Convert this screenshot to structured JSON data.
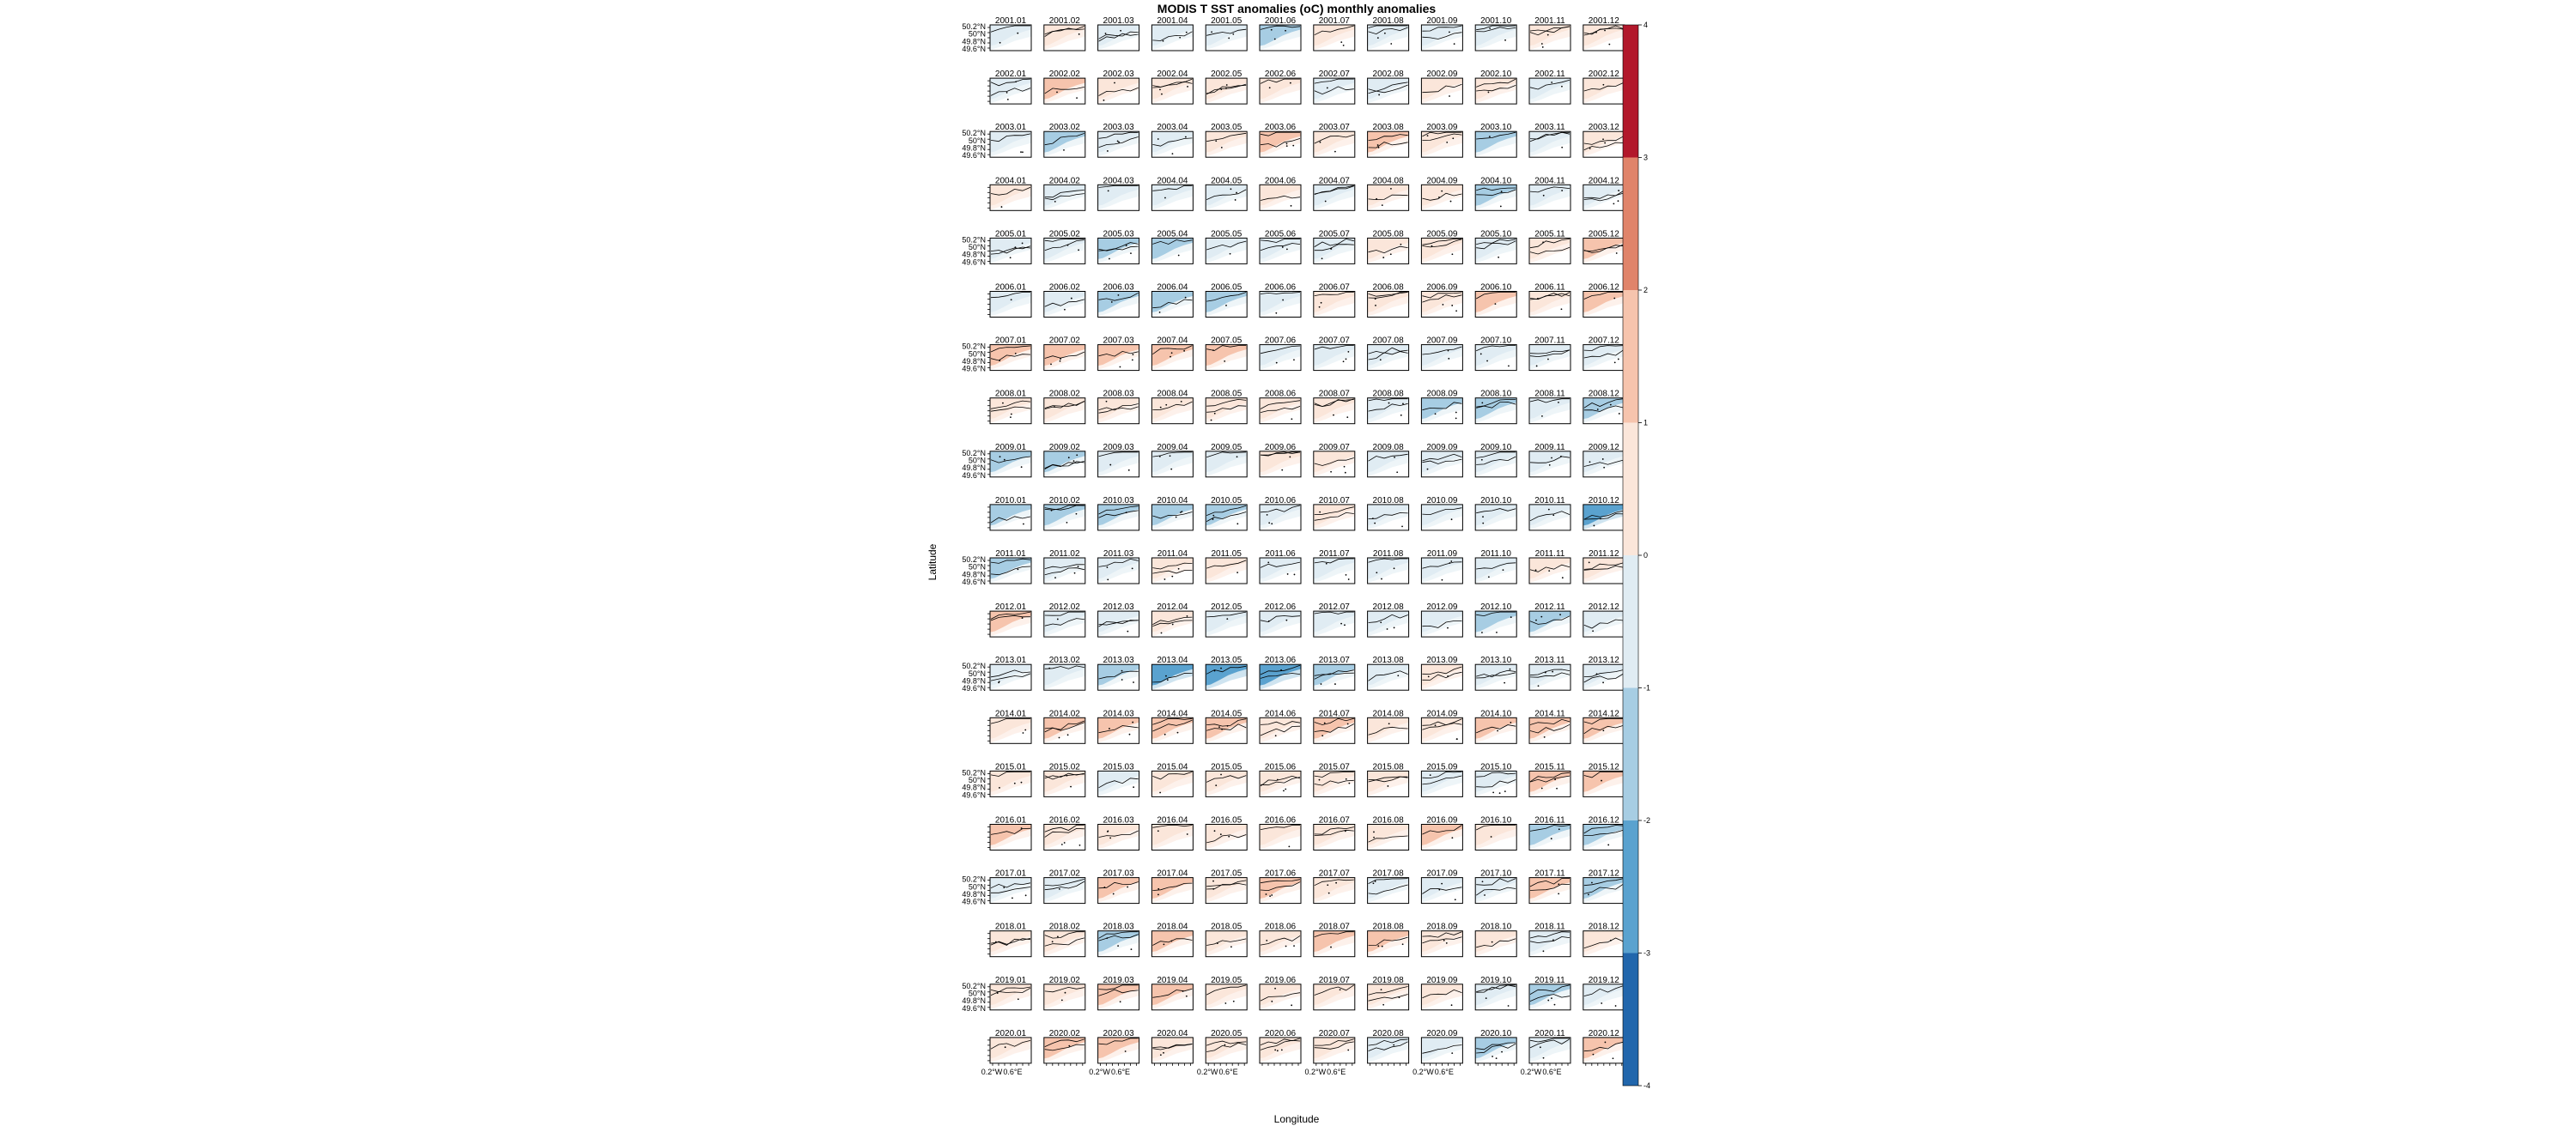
{
  "chart_data": {
    "type": "heatmap",
    "title": "MODIS T SST anomalies (oC) monthly anomalies",
    "xlabel": "Longitude",
    "ylabel": "Latitude",
    "years": [
      "2001",
      "2002",
      "2003",
      "2004",
      "2005",
      "2006",
      "2007",
      "2008",
      "2009",
      "2010",
      "2011",
      "2012",
      "2013",
      "2014",
      "2015",
      "2016",
      "2017",
      "2018",
      "2019",
      "2020"
    ],
    "months": [
      "01",
      "02",
      "03",
      "04",
      "05",
      "06",
      "07",
      "08",
      "09",
      "10",
      "11",
      "12"
    ],
    "y_tick_labels": [
      "50.2°N",
      "50°N",
      "49.8°N",
      "49.6°N"
    ],
    "x_tick_labels": [
      "0.2°W",
      "0.6°E"
    ],
    "colorbar": {
      "ticks": [
        "4",
        "3",
        "2",
        "1",
        "0",
        "-1",
        "-2",
        "-3",
        "-4"
      ],
      "range": [
        -4,
        4
      ],
      "bins": [
        {
          "from": 3,
          "to": 4,
          "color": "#b2182b"
        },
        {
          "from": 2,
          "to": 3,
          "color": "#e0846a"
        },
        {
          "from": 1,
          "to": 2,
          "color": "#f6c4ad"
        },
        {
          "from": 0,
          "to": 1,
          "color": "#fbe6da"
        },
        {
          "from": -1,
          "to": 0,
          "color": "#e0ecf3"
        },
        {
          "from": -2,
          "to": -1,
          "color": "#a7cde3"
        },
        {
          "from": -3,
          "to": -2,
          "color": "#5aa2cf"
        },
        {
          "from": -4,
          "to": -3,
          "color": "#2166ac"
        }
      ]
    },
    "approx_monthly_mean_anomaly": {
      "2001": [
        -0.5,
        0.5,
        -0.5,
        -0.5,
        -0.5,
        -1.5,
        0.5,
        -0.5,
        -0.5,
        -0.5,
        0.5,
        0.5
      ],
      "2002": [
        -0.5,
        1.5,
        0.5,
        0.5,
        0.5,
        0.5,
        -0.5,
        -0.5,
        0.5,
        0.5,
        -0.5,
        0.5
      ],
      "2003": [
        -0.5,
        -1.5,
        -0.5,
        -0.5,
        0.5,
        1.5,
        0.5,
        1.5,
        0.5,
        -1.5,
        -0.5,
        0.5
      ],
      "2004": [
        0.5,
        -0.5,
        -0.5,
        -0.5,
        -0.5,
        0.5,
        -0.5,
        0.5,
        0.5,
        -1.5,
        -0.5,
        -0.5
      ],
      "2005": [
        -0.5,
        -0.5,
        -1.5,
        -1.5,
        -0.5,
        -0.5,
        -0.5,
        0.5,
        0.5,
        -0.5,
        0.5,
        1.5
      ],
      "2006": [
        -0.5,
        -0.5,
        -1.5,
        -1.5,
        -1.5,
        -0.5,
        0.5,
        0.5,
        0.5,
        1.5,
        0.5,
        1.5
      ],
      "2007": [
        1.5,
        1.5,
        1.5,
        1.5,
        1.5,
        -0.5,
        -0.5,
        -0.5,
        -0.5,
        -0.5,
        -0.5,
        -0.5
      ],
      "2008": [
        0.5,
        0.5,
        0.5,
        0.5,
        0.5,
        0.5,
        0.5,
        -0.5,
        -1.5,
        -1.5,
        -0.5,
        -1.5
      ],
      "2009": [
        -1.5,
        -1.5,
        -0.5,
        -0.5,
        -0.5,
        0.5,
        0.5,
        -0.5,
        -0.5,
        -0.5,
        -0.5,
        -0.5
      ],
      "2010": [
        -1.5,
        -1.5,
        -1.5,
        -1.5,
        -1.5,
        -0.5,
        0.5,
        -0.5,
        -0.5,
        -0.5,
        -0.5,
        -2.5
      ],
      "2011": [
        -1.5,
        -0.5,
        -0.5,
        0.5,
        0.5,
        -0.5,
        -0.5,
        -0.5,
        -0.5,
        -0.5,
        0.5,
        0.5
      ],
      "2012": [
        1.5,
        -0.5,
        -0.5,
        0.5,
        -0.5,
        -0.5,
        -0.5,
        -0.5,
        -0.5,
        -1.5,
        -1.5,
        -0.5
      ],
      "2013": [
        -0.5,
        -0.5,
        -1.5,
        -2.5,
        -2.5,
        -2.5,
        -1.5,
        -0.5,
        0.5,
        -0.5,
        -0.5,
        -0.5
      ],
      "2014": [
        0.5,
        1.5,
        1.5,
        1.5,
        1.5,
        0.5,
        1.5,
        0.5,
        0.5,
        1.5,
        1.5,
        1.5
      ],
      "2015": [
        0.5,
        0.5,
        -0.5,
        0.5,
        0.5,
        0.5,
        0.5,
        0.5,
        -0.5,
        -0.5,
        1.5,
        1.5
      ],
      "2016": [
        1.5,
        0.5,
        0.5,
        0.5,
        0.5,
        0.5,
        0.5,
        0.5,
        1.5,
        0.5,
        -1.5,
        -1.5
      ],
      "2017": [
        -0.5,
        -0.5,
        1.5,
        1.5,
        0.5,
        1.5,
        0.5,
        -0.5,
        -0.5,
        -0.5,
        1.5,
        -1.5
      ],
      "2018": [
        0.5,
        0.5,
        -1.5,
        1.5,
        0.5,
        0.5,
        1.5,
        1.5,
        0.5,
        0.5,
        -0.5,
        0.5
      ],
      "2019": [
        0.5,
        0.5,
        1.5,
        1.5,
        0.5,
        0.5,
        0.5,
        0.5,
        0.5,
        -0.5,
        -1.5,
        -0.5
      ],
      "2020": [
        0.5,
        1.5,
        1.5,
        0.5,
        0.5,
        0.5,
        0.5,
        -0.5,
        -0.5,
        -1.5,
        -0.5,
        1.5
      ]
    }
  }
}
